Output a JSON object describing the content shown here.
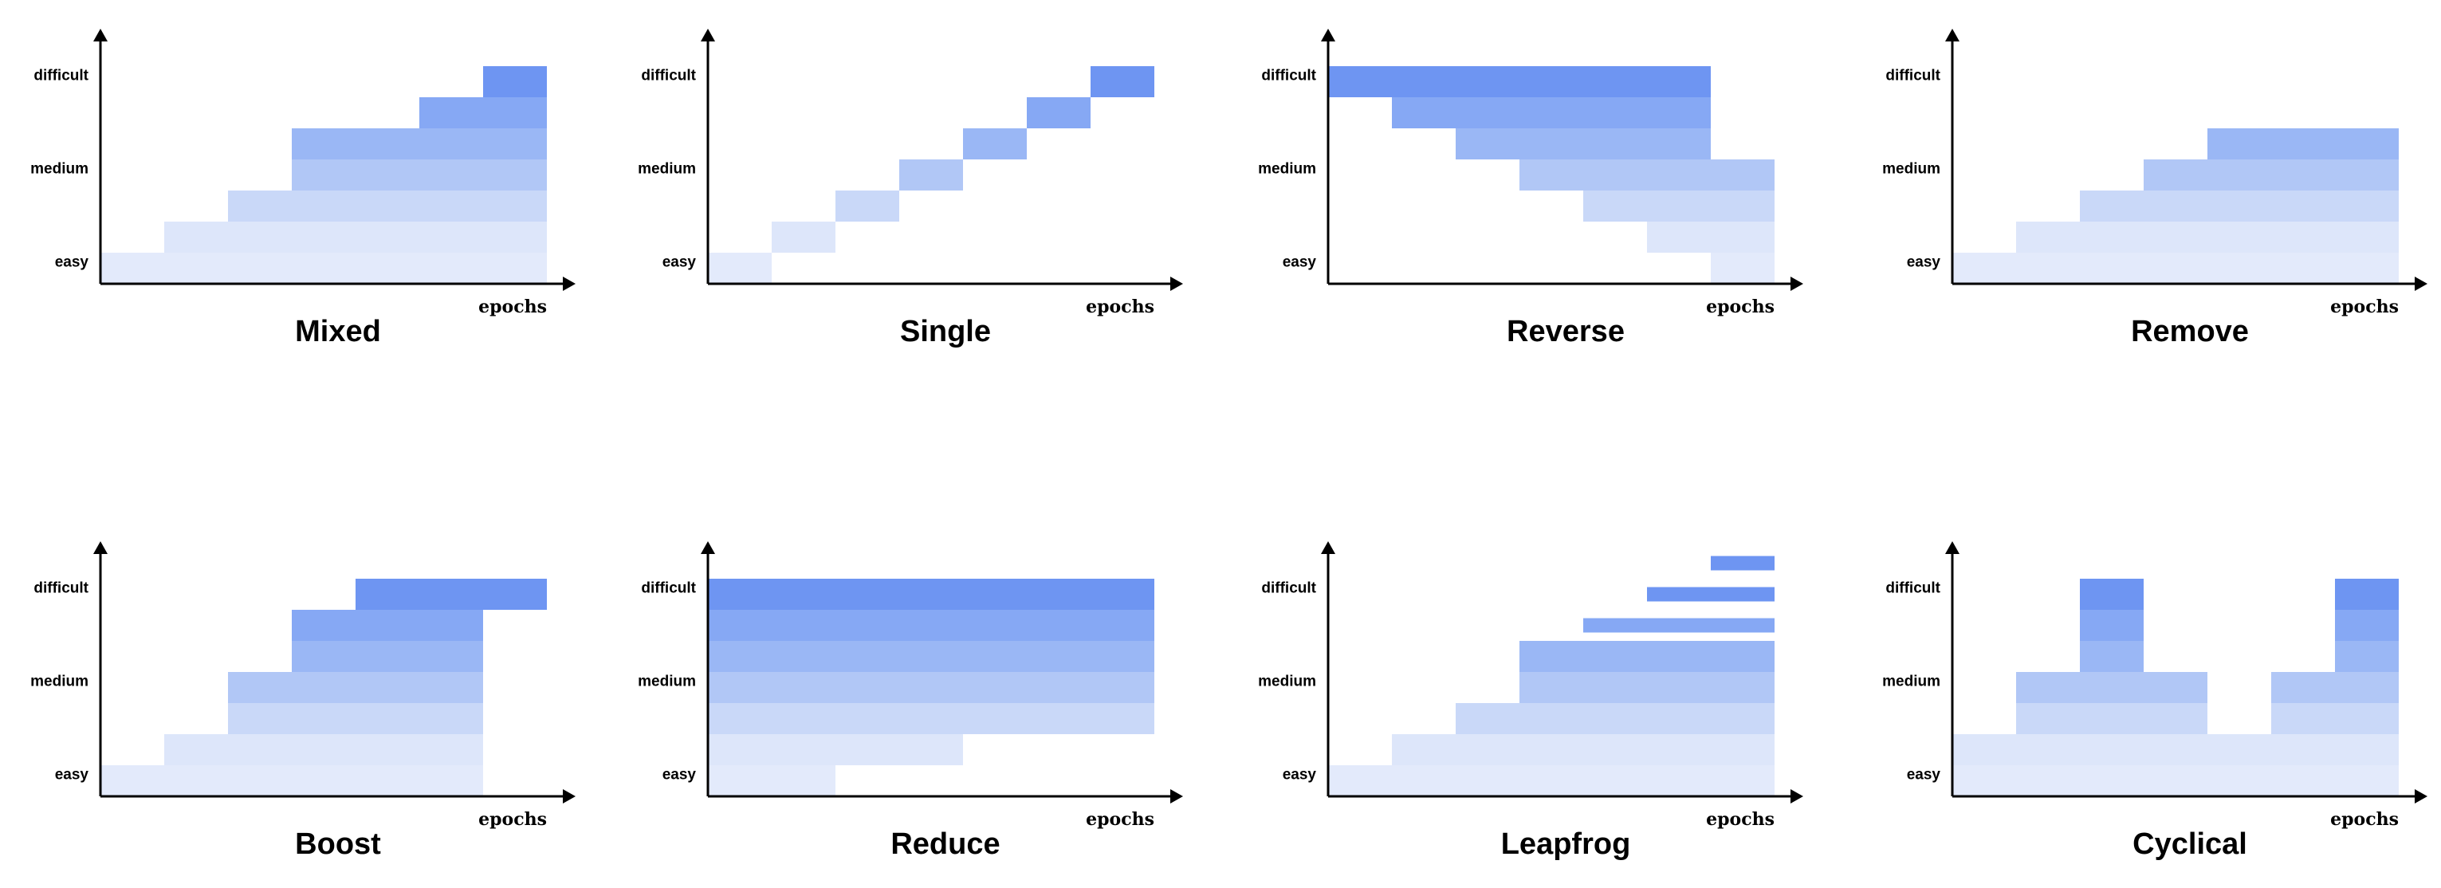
{
  "shared": {
    "y_levels": [
      "easy",
      "medium",
      "difficult"
    ],
    "x_label": "epochs",
    "row_colors": [
      "#e3eafb",
      "#dde6fa",
      "#c9d8f8",
      "#b1c7f6",
      "#9ab7f5",
      "#86a8f4",
      "#6e95f2"
    ],
    "colors": {
      "axis": "#000000",
      "title": "#000000",
      "background": "#ffffff"
    }
  },
  "panels": [
    {
      "title": "Mixed",
      "cells": [
        [
          0,
          0,
          7
        ],
        [
          1,
          1,
          7
        ],
        [
          2,
          2,
          7
        ],
        [
          3,
          3,
          7
        ],
        [
          4,
          3,
          7
        ],
        [
          5,
          5,
          7
        ],
        [
          6,
          6,
          7
        ]
      ]
    },
    {
      "title": "Single",
      "cells": [
        [
          0,
          0,
          1
        ],
        [
          1,
          1,
          2
        ],
        [
          2,
          2,
          3
        ],
        [
          3,
          3,
          4
        ],
        [
          4,
          4,
          5
        ],
        [
          5,
          5,
          6
        ],
        [
          6,
          6,
          7
        ]
      ]
    },
    {
      "title": "Reverse",
      "cells": [
        [
          0,
          6,
          7
        ],
        [
          1,
          5,
          7
        ],
        [
          2,
          4,
          7
        ],
        [
          3,
          3,
          7
        ],
        [
          4,
          2,
          6
        ],
        [
          5,
          1,
          6
        ],
        [
          6,
          0,
          6
        ]
      ]
    },
    {
      "title": "Remove",
      "cells": [
        [
          0,
          0,
          7
        ],
        [
          1,
          1,
          7
        ],
        [
          2,
          2,
          7
        ],
        [
          3,
          3,
          7
        ],
        [
          4,
          4,
          7
        ]
      ]
    },
    {
      "title": "Boost",
      "cells": [
        [
          0,
          0,
          6
        ],
        [
          1,
          1,
          6
        ],
        [
          2,
          2,
          6
        ],
        [
          3,
          2,
          6
        ],
        [
          4,
          3,
          6
        ],
        [
          5,
          3,
          6
        ],
        [
          6,
          4,
          7
        ]
      ]
    },
    {
      "title": "Reduce",
      "cells": [
        [
          0,
          0,
          2
        ],
        [
          1,
          0,
          4
        ],
        [
          2,
          0,
          7
        ],
        [
          3,
          0,
          7
        ],
        [
          4,
          0,
          7
        ],
        [
          5,
          0,
          7
        ],
        [
          6,
          0,
          7
        ]
      ]
    },
    {
      "title": "Leapfrog",
      "cells": [
        [
          0,
          0,
          7
        ],
        [
          1,
          1,
          7
        ],
        [
          2,
          2,
          7
        ],
        [
          3,
          3,
          7
        ],
        [
          4,
          3,
          7
        ],
        [
          5,
          4,
          7,
          "thin"
        ],
        [
          6,
          5,
          7,
          "thin"
        ],
        [
          7,
          6,
          7,
          "thin"
        ]
      ]
    },
    {
      "title": "Cyclical",
      "cells": [
        [
          0,
          0,
          7
        ],
        [
          1,
          0,
          7
        ],
        [
          2,
          1,
          4
        ],
        [
          2,
          5,
          7
        ],
        [
          3,
          1,
          4
        ],
        [
          3,
          5,
          7
        ],
        [
          4,
          2,
          3
        ],
        [
          4,
          6,
          7
        ],
        [
          5,
          2,
          3
        ],
        [
          5,
          6,
          7
        ],
        [
          6,
          2,
          3
        ],
        [
          6,
          6,
          7
        ]
      ]
    }
  ]
}
